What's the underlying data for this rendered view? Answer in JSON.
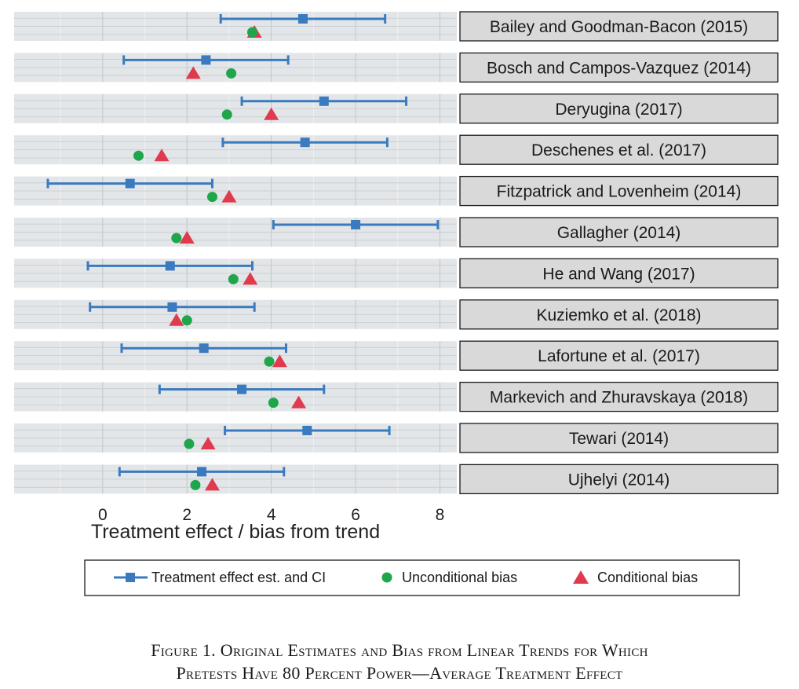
{
  "chart_data": {
    "type": "scatter",
    "xlabel": "Treatment effect / bias from trend",
    "xlim": [
      -2.1,
      8.4
    ],
    "xticks": [
      0,
      2,
      4,
      6,
      8
    ],
    "legend_position": "bottom",
    "grid": true,
    "legend": {
      "estimate": "Treatment effect est. and CI",
      "unconditional": "Unconditional bias",
      "conditional": "Conditional bias"
    },
    "colors": {
      "estimate": "#3a7abf",
      "unconditional": "#1fa64a",
      "conditional": "#e03a4e",
      "panel_bg": "#e3e6e8",
      "strip_bg": "#d9d9d9"
    },
    "studies": [
      {
        "name": "Bailey and Goodman-Bacon (2015)",
        "estimate": 4.75,
        "ci_low": 2.8,
        "ci_high": 6.7,
        "unconditional_bias": 3.55,
        "conditional_bias": 3.6
      },
      {
        "name": "Bosch and Campos-Vazquez (2014)",
        "estimate": 2.45,
        "ci_low": 0.5,
        "ci_high": 4.4,
        "unconditional_bias": 3.05,
        "conditional_bias": 2.15
      },
      {
        "name": "Deryugina (2017)",
        "estimate": 5.25,
        "ci_low": 3.3,
        "ci_high": 7.2,
        "unconditional_bias": 2.95,
        "conditional_bias": 4.0
      },
      {
        "name": "Deschenes et al. (2017)",
        "estimate": 4.8,
        "ci_low": 2.85,
        "ci_high": 6.75,
        "unconditional_bias": 0.85,
        "conditional_bias": 1.4
      },
      {
        "name": "Fitzpatrick and Lovenheim (2014)",
        "estimate": 0.65,
        "ci_low": -1.3,
        "ci_high": 2.6,
        "unconditional_bias": 2.6,
        "conditional_bias": 3.0
      },
      {
        "name": "Gallagher (2014)",
        "estimate": 6.0,
        "ci_low": 4.05,
        "ci_high": 7.95,
        "unconditional_bias": 1.75,
        "conditional_bias": 2.0
      },
      {
        "name": "He and Wang (2017)",
        "estimate": 1.6,
        "ci_low": -0.35,
        "ci_high": 3.55,
        "unconditional_bias": 3.1,
        "conditional_bias": 3.5
      },
      {
        "name": "Kuziemko et al. (2018)",
        "estimate": 1.65,
        "ci_low": -0.3,
        "ci_high": 3.6,
        "unconditional_bias": 2.0,
        "conditional_bias": 1.75
      },
      {
        "name": "Lafortune et al. (2017)",
        "estimate": 2.4,
        "ci_low": 0.45,
        "ci_high": 4.35,
        "unconditional_bias": 3.95,
        "conditional_bias": 4.2
      },
      {
        "name": "Markevich and Zhuravskaya (2018)",
        "estimate": 3.3,
        "ci_low": 1.35,
        "ci_high": 5.25,
        "unconditional_bias": 4.05,
        "conditional_bias": 4.65
      },
      {
        "name": "Tewari (2014)",
        "estimate": 4.85,
        "ci_low": 2.9,
        "ci_high": 6.8,
        "unconditional_bias": 2.05,
        "conditional_bias": 2.5
      },
      {
        "name": "Ujhelyi (2014)",
        "estimate": 2.35,
        "ci_low": 0.4,
        "ci_high": 4.3,
        "unconditional_bias": 2.2,
        "conditional_bias": 2.6
      }
    ]
  },
  "caption": {
    "line1": "Figure 1. Original Estimates and Bias from Linear Trends for Which",
    "line2": "Pretests Have 80 Percent Power—Average Treatment Effect"
  }
}
